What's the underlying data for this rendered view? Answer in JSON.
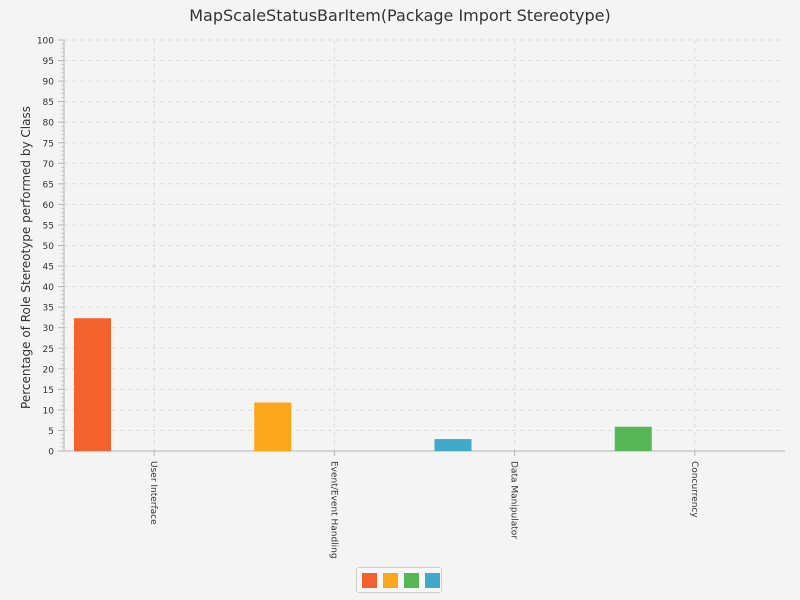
{
  "chart_data": {
    "type": "bar",
    "title": "MapScaleStatusBarItem(Package Import Stereotype)",
    "xlabel": "",
    "ylabel": "Percentage of Role Stereotype performed by Class",
    "ylim": [
      0,
      100
    ],
    "yticks": [
      0,
      5,
      10,
      15,
      20,
      25,
      30,
      35,
      40,
      45,
      50,
      55,
      60,
      65,
      70,
      75,
      80,
      85,
      90,
      95,
      100
    ],
    "categories": [
      "User Interface",
      "Event/Event Handling",
      "Data Manipulator",
      "Concurrency"
    ],
    "values": [
      32.3,
      11.8,
      2.9,
      5.9
    ],
    "bar_colors": [
      "#f3622d",
      "#fba71b",
      "#41a9c9",
      "#57b757"
    ],
    "legend_colors": [
      "#f3622d",
      "#fba71b",
      "#57b757",
      "#41a9c9"
    ],
    "grid": true,
    "legend_position": "bottom"
  }
}
